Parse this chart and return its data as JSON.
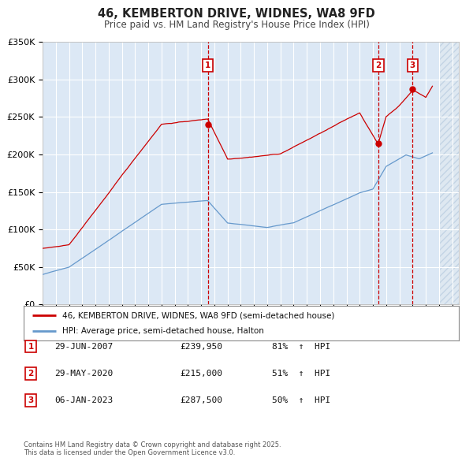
{
  "title": "46, KEMBERTON DRIVE, WIDNES, WA8 9FD",
  "subtitle": "Price paid vs. HM Land Registry's House Price Index (HPI)",
  "ylim": [
    0,
    350000
  ],
  "yticks": [
    0,
    50000,
    100000,
    150000,
    200000,
    250000,
    300000,
    350000
  ],
  "ytick_labels": [
    "£0",
    "£50K",
    "£100K",
    "£150K",
    "£200K",
    "£250K",
    "£300K",
    "£350K"
  ],
  "xlim_start": 1995.0,
  "xlim_end": 2026.5,
  "plot_bg_color": "#dce8f5",
  "red_line_color": "#cc0000",
  "blue_line_color": "#6699cc",
  "sale_marker_color": "#cc0000",
  "sale_line_color": "#cc0000",
  "legend_label_red": "46, KEMBERTON DRIVE, WIDNES, WA8 9FD (semi-detached house)",
  "legend_label_blue": "HPI: Average price, semi-detached house, Halton",
  "sales": [
    {
      "num": 1,
      "date": "29-JUN-2007",
      "price": 239950,
      "pct": "81%",
      "dir": "↑",
      "year": 2007.5
    },
    {
      "num": 2,
      "date": "29-MAY-2020",
      "price": 215000,
      "pct": "51%",
      "dir": "↑",
      "year": 2020.4
    },
    {
      "num": 3,
      "date": "06-JAN-2023",
      "price": 287500,
      "pct": "50%",
      "dir": "↑",
      "year": 2023.0
    }
  ],
  "footer": "Contains HM Land Registry data © Crown copyright and database right 2025.\nThis data is licensed under the Open Government Licence v3.0."
}
